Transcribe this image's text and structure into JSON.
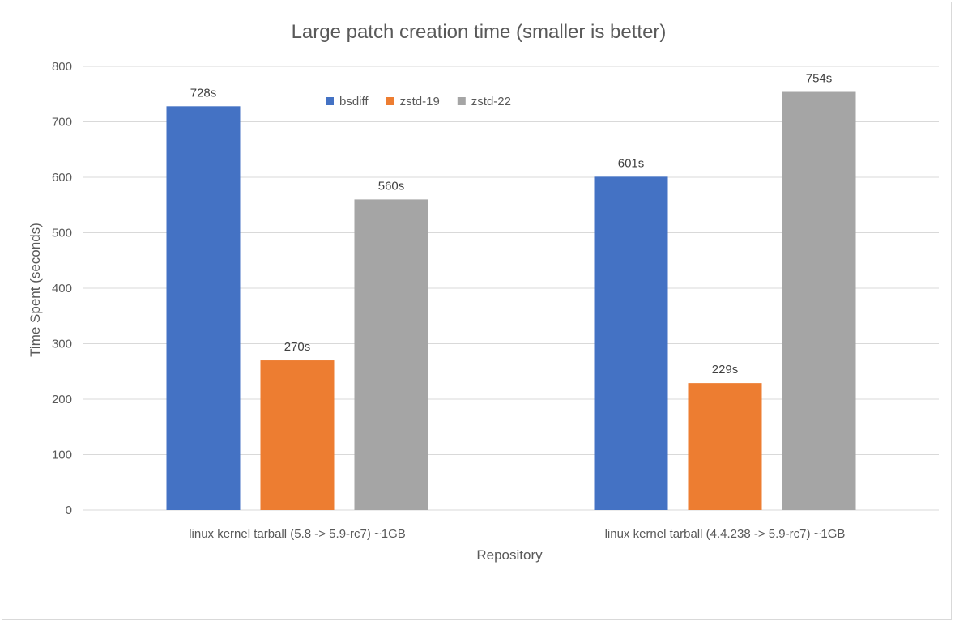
{
  "chart_data": {
    "type": "bar",
    "title": "Large patch creation time (smaller is better)",
    "xlabel": "Repository",
    "ylabel": "Time Spent (seconds)",
    "ylim": [
      0,
      800
    ],
    "yticks": [
      0,
      100,
      200,
      300,
      400,
      500,
      600,
      700,
      800
    ],
    "ytick_labels": [
      "0",
      "100",
      "200",
      "300",
      "400",
      "500",
      "600",
      "700",
      "800"
    ],
    "grid": true,
    "legend_position": "top-center",
    "categories": [
      "linux kernel tarball (5.8 -> 5.9-rc7) ~1GB",
      "linux kernel tarball (4.4.238 -> 5.9-rc7) ~1GB"
    ],
    "series": [
      {
        "name": "bsdiff",
        "color": "#4472c4",
        "values": [
          728,
          601
        ],
        "labels": [
          "728s",
          "601s"
        ]
      },
      {
        "name": "zstd-19",
        "color": "#ed7d31",
        "values": [
          270,
          229
        ],
        "labels": [
          "270s",
          "229s"
        ]
      },
      {
        "name": "zstd-22",
        "color": "#a5a5a5",
        "values": [
          560,
          754
        ],
        "labels": [
          "560s",
          "754s"
        ]
      }
    ],
    "gridline_color": "#d9d9d9"
  }
}
